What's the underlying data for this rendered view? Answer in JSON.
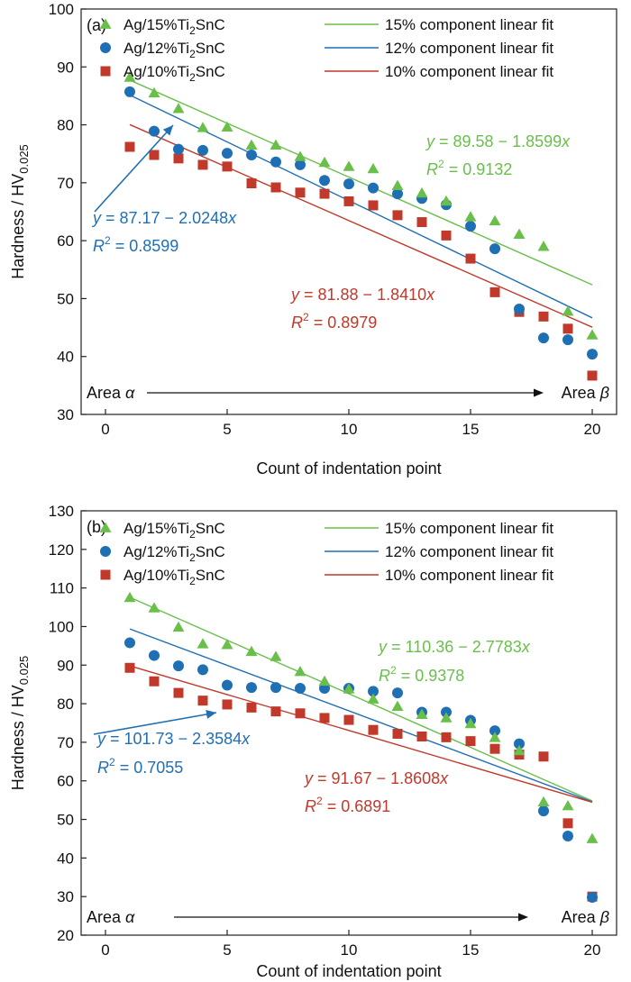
{
  "chart_data": [
    {
      "type": "scatter",
      "panel_label": "(a)",
      "xlabel": "Count of indentation point",
      "ylabel_main": "Hardness / HV",
      "ylabel_sub": "0.025",
      "xlim": [
        -1,
        21
      ],
      "ylim": [
        30,
        100
      ],
      "xticks": [
        0,
        5,
        10,
        15,
        20
      ],
      "yticks": [
        30,
        40,
        50,
        60,
        70,
        80,
        90,
        100
      ],
      "grid": false,
      "legend_placement": "top",
      "start_label": "Area",
      "start_symbol": "α",
      "end_label": "Area",
      "end_symbol": "β",
      "series": [
        {
          "name_prefix": "Ag/15%Ti",
          "name_sub": "2",
          "name_suffix": "SnC",
          "marker": "triangle",
          "color": "#6abf4b",
          "fit_label": "15% component linear fit",
          "x": [
            1,
            2,
            3,
            4,
            5,
            6,
            7,
            8,
            9,
            10,
            11,
            12,
            13,
            14,
            15,
            16,
            17,
            18,
            19,
            20
          ],
          "values": [
            88.2,
            85.5,
            82.8,
            79.5,
            79.6,
            76.5,
            76.5,
            74.5,
            73.5,
            72.8,
            72.4,
            69.5,
            68.2,
            66.8,
            64.1,
            63.4,
            61.1,
            59.0,
            47.8,
            43.7
          ],
          "fit": {
            "intercept": 89.58,
            "slope": -1.8599
          },
          "eq_y": "y",
          "eq_mid": " = 89.58 − 1.8599",
          "eq_x": "x",
          "r2_label": "R",
          "r2_sup": "2",
          "r2_value": " = 0.9132"
        },
        {
          "name_prefix": "Ag/12%Ti",
          "name_sub": "2",
          "name_suffix": "SnC",
          "marker": "circle",
          "color": "#1f6fb4",
          "fit_label": "12% component linear fit",
          "x": [
            1,
            2,
            3,
            4,
            5,
            6,
            7,
            8,
            9,
            10,
            11,
            12,
            13,
            14,
            15,
            16,
            17,
            18,
            19,
            20
          ],
          "values": [
            85.7,
            78.9,
            75.8,
            75.6,
            75.1,
            74.8,
            73.6,
            73.1,
            70.4,
            69.8,
            69.1,
            68.1,
            67.3,
            66.2,
            62.5,
            58.6,
            48.2,
            43.2,
            42.9,
            40.4
          ],
          "fit": {
            "intercept": 87.17,
            "slope": -2.0248
          },
          "eq_y": "y",
          "eq_mid": " = 87.17 − 2.0248",
          "eq_x": "x",
          "r2_label": "R",
          "r2_sup": "2",
          "r2_value": " = 0.8599"
        },
        {
          "name_prefix": "Ag/10%Ti",
          "name_sub": "2",
          "name_suffix": "SnC",
          "marker": "square",
          "color": "#c0392b",
          "fit_label": "10% component linear fit",
          "x": [
            1,
            2,
            3,
            4,
            5,
            6,
            7,
            8,
            9,
            10,
            11,
            12,
            13,
            14,
            15,
            16,
            17,
            18,
            19,
            20
          ],
          "values": [
            76.2,
            74.8,
            74.2,
            73.1,
            72.8,
            69.9,
            69.2,
            68.3,
            68.1,
            66.8,
            66.1,
            64.4,
            63.2,
            60.9,
            56.9,
            51.1,
            47.7,
            46.9,
            44.8,
            36.7
          ],
          "fit": {
            "intercept": 81.88,
            "slope": -1.841
          },
          "eq_y": "y",
          "eq_mid": " = 81.88 − 1.8410",
          "eq_x": "x",
          "r2_label": "R",
          "r2_sup": "2",
          "r2_value": " = 0.8979"
        }
      ]
    },
    {
      "type": "scatter",
      "panel_label": "(b)",
      "xlabel": "Count of indentation point",
      "ylabel_main": "Hardness / HV",
      "ylabel_sub": "0.025",
      "xlim": [
        -1,
        21
      ],
      "ylim": [
        20,
        130
      ],
      "xticks": [
        0,
        5,
        10,
        15,
        20
      ],
      "yticks": [
        20,
        30,
        40,
        50,
        60,
        70,
        80,
        90,
        100,
        110,
        120,
        130
      ],
      "grid": false,
      "legend_placement": "top",
      "start_label": "Area",
      "start_symbol": "α",
      "end_label": "Area",
      "end_symbol": "β",
      "series": [
        {
          "name_prefix": "Ag/15%Ti",
          "name_sub": "2",
          "name_suffix": "SnC",
          "marker": "triangle",
          "color": "#6abf4b",
          "fit_label": "15% component linear fit",
          "x": [
            1,
            2,
            3,
            4,
            5,
            6,
            7,
            8,
            9,
            10,
            11,
            12,
            13,
            14,
            15,
            16,
            17,
            18,
            19,
            20
          ],
          "values": [
            107.5,
            104.8,
            99.8,
            95.5,
            95.3,
            93.5,
            92.2,
            88.3,
            85.8,
            83.8,
            81.2,
            79.3,
            77.2,
            76.3,
            74.8,
            71.2,
            67.8,
            54.5,
            53.5,
            45.0
          ],
          "fit": {
            "intercept": 110.36,
            "slope": -2.7783
          },
          "eq_y": "y",
          "eq_mid": " = 110.36 − 2.7783",
          "eq_x": "x",
          "r2_label": "R",
          "r2_sup": "2",
          "r2_value": " = 0.9378"
        },
        {
          "name_prefix": "Ag/12%Ti",
          "name_sub": "2",
          "name_suffix": "SnC",
          "marker": "circle",
          "color": "#1f6fb4",
          "fit_label": "12% component linear fit",
          "x": [
            1,
            2,
            3,
            4,
            5,
            6,
            7,
            8,
            9,
            10,
            11,
            12,
            13,
            14,
            15,
            16,
            17,
            18,
            19,
            20
          ],
          "values": [
            95.8,
            92.5,
            89.8,
            88.8,
            84.8,
            84.2,
            84.2,
            84.0,
            84.0,
            84.0,
            83.2,
            82.8,
            77.8,
            77.8,
            75.7,
            73.0,
            69.6,
            52.2,
            45.7,
            29.8
          ],
          "fit": {
            "intercept": 101.73,
            "slope": -2.3584
          },
          "eq_y": "y",
          "eq_mid": " = 101.73 − 2.3584",
          "eq_x": "x",
          "r2_label": "R",
          "r2_sup": "2",
          "r2_value": " = 0.7055"
        },
        {
          "name_prefix": "Ag/10%Ti",
          "name_sub": "2",
          "name_suffix": "SnC",
          "marker": "square",
          "color": "#c0392b",
          "fit_label": "10% component linear fit",
          "x": [
            1,
            2,
            3,
            4,
            5,
            6,
            7,
            8,
            9,
            10,
            11,
            12,
            13,
            14,
            15,
            16,
            17,
            18,
            19,
            20
          ],
          "values": [
            89.3,
            85.8,
            82.8,
            80.8,
            79.8,
            79.0,
            78.0,
            77.5,
            76.3,
            75.8,
            73.2,
            72.2,
            71.5,
            71.3,
            70.3,
            68.3,
            66.8,
            66.3,
            49.0,
            30.0
          ],
          "fit": {
            "intercept": 91.67,
            "slope": -1.8608
          },
          "eq_y": "y",
          "eq_mid": " = 91.67 − 1.8608",
          "eq_x": "x",
          "r2_label": "R",
          "r2_sup": "2",
          "r2_value": " = 0.6891"
        }
      ]
    }
  ]
}
